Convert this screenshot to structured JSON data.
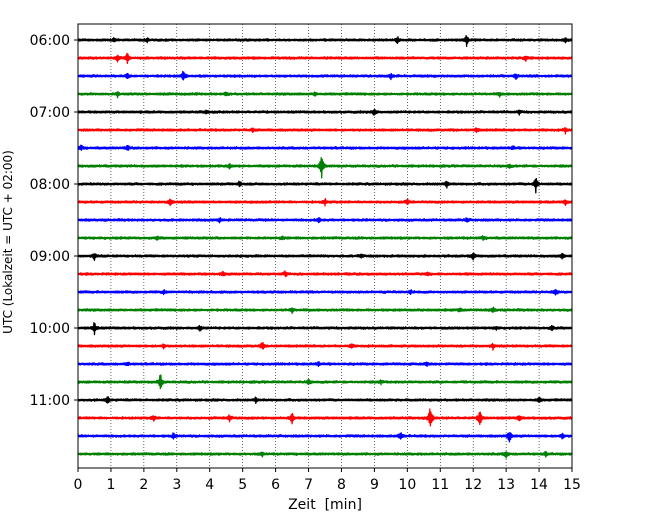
{
  "chart_data": {
    "type": "line",
    "title": "",
    "xlabel": "Zeit  [min]",
    "ylabel": "UTC (Lokalzeit = UTC + 02:00)",
    "xlim": [
      0,
      15
    ],
    "x_ticks": [
      0,
      1,
      2,
      3,
      4,
      5,
      6,
      7,
      8,
      9,
      10,
      11,
      12,
      13,
      14,
      15
    ],
    "y_tick_labels": [
      "06:00",
      "07:00",
      "08:00",
      "09:00",
      "10:00",
      "11:00"
    ],
    "row_interval_min": 15,
    "grid": "vertical dotted",
    "colors": [
      "#000000",
      "#ff0000",
      "#0000ff",
      "#008000"
    ],
    "rows": [
      {
        "start": "06:00",
        "color": "#000000",
        "events": [
          [
            1.1,
            2
          ],
          [
            2.1,
            2
          ],
          [
            9.7,
            4
          ],
          [
            11.8,
            6
          ],
          [
            14.8,
            3
          ]
        ]
      },
      {
        "start": "06:15",
        "color": "#ff0000",
        "events": [
          [
            1.2,
            4
          ],
          [
            1.5,
            6
          ],
          [
            13.6,
            3
          ]
        ]
      },
      {
        "start": "06:30",
        "color": "#0000ff",
        "events": [
          [
            1.5,
            3
          ],
          [
            3.2,
            6
          ],
          [
            9.5,
            3
          ],
          [
            13.3,
            3
          ]
        ]
      },
      {
        "start": "06:45",
        "color": "#008000",
        "events": [
          [
            1.2,
            3
          ],
          [
            4.5,
            2
          ],
          [
            7.2,
            2
          ],
          [
            12.8,
            2
          ]
        ]
      },
      {
        "start": "07:00",
        "color": "#000000",
        "events": [
          [
            3.9,
            2
          ],
          [
            9.0,
            5
          ],
          [
            13.4,
            2
          ]
        ]
      },
      {
        "start": "07:15",
        "color": "#ff0000",
        "events": [
          [
            5.3,
            2
          ],
          [
            12.1,
            2
          ],
          [
            14.8,
            3
          ]
        ]
      },
      {
        "start": "07:30",
        "color": "#0000ff",
        "events": [
          [
            0.1,
            3
          ],
          [
            1.5,
            3
          ],
          [
            13.2,
            2
          ]
        ]
      },
      {
        "start": "07:45",
        "color": "#008000",
        "events": [
          [
            7.4,
            14
          ],
          [
            4.6,
            3
          ],
          [
            13.1,
            2
          ]
        ]
      },
      {
        "start": "08:00",
        "color": "#000000",
        "events": [
          [
            4.9,
            3
          ],
          [
            11.2,
            4
          ],
          [
            13.9,
            9
          ]
        ]
      },
      {
        "start": "08:15",
        "color": "#ff0000",
        "events": [
          [
            2.8,
            5
          ],
          [
            7.5,
            4
          ],
          [
            10.0,
            3
          ],
          [
            14.8,
            3
          ]
        ]
      },
      {
        "start": "08:30",
        "color": "#0000ff",
        "events": [
          [
            4.3,
            2
          ],
          [
            7.3,
            3
          ],
          [
            11.8,
            2
          ]
        ]
      },
      {
        "start": "08:45",
        "color": "#008000",
        "events": [
          [
            2.4,
            2
          ],
          [
            6.2,
            2
          ],
          [
            12.3,
            2
          ]
        ]
      },
      {
        "start": "09:00",
        "color": "#000000",
        "events": [
          [
            0.5,
            4
          ],
          [
            8.6,
            2
          ],
          [
            12.0,
            5
          ],
          [
            14.7,
            3
          ]
        ]
      },
      {
        "start": "09:15",
        "color": "#ff0000",
        "events": [
          [
            4.4,
            2
          ],
          [
            6.3,
            3
          ],
          [
            10.6,
            2
          ]
        ]
      },
      {
        "start": "09:30",
        "color": "#0000ff",
        "events": [
          [
            2.6,
            2
          ],
          [
            10.1,
            2
          ],
          [
            14.5,
            4
          ]
        ]
      },
      {
        "start": "09:45",
        "color": "#008000",
        "events": [
          [
            6.5,
            3
          ],
          [
            11.6,
            2
          ],
          [
            12.6,
            3
          ]
        ]
      },
      {
        "start": "10:00",
        "color": "#000000",
        "events": [
          [
            0.5,
            7
          ],
          [
            3.7,
            3
          ],
          [
            12.7,
            2
          ],
          [
            14.4,
            3
          ]
        ]
      },
      {
        "start": "10:15",
        "color": "#ff0000",
        "events": [
          [
            2.6,
            2
          ],
          [
            5.6,
            4
          ],
          [
            8.3,
            2
          ],
          [
            12.6,
            3
          ]
        ]
      },
      {
        "start": "10:30",
        "color": "#0000ff",
        "events": [
          [
            1.5,
            2
          ],
          [
            7.3,
            2
          ],
          [
            10.6,
            2
          ]
        ]
      },
      {
        "start": "10:45",
        "color": "#008000",
        "events": [
          [
            2.5,
            10
          ],
          [
            7.0,
            3
          ],
          [
            9.2,
            2
          ]
        ]
      },
      {
        "start": "11:00",
        "color": "#000000",
        "events": [
          [
            0.9,
            4
          ],
          [
            5.4,
            3
          ],
          [
            14.0,
            3
          ]
        ]
      },
      {
        "start": "11:15",
        "color": "#ff0000",
        "events": [
          [
            2.3,
            3
          ],
          [
            4.6,
            4
          ],
          [
            6.5,
            6
          ],
          [
            10.7,
            14
          ],
          [
            12.2,
            10
          ],
          [
            13.4,
            3
          ]
        ]
      },
      {
        "start": "11:30",
        "color": "#0000ff",
        "events": [
          [
            2.9,
            3
          ],
          [
            9.8,
            5
          ],
          [
            13.1,
            7
          ],
          [
            14.7,
            3
          ]
        ]
      },
      {
        "start": "11:45",
        "color": "#008000",
        "events": [
          [
            5.6,
            2
          ],
          [
            13.0,
            4
          ],
          [
            14.2,
            2
          ]
        ]
      }
    ]
  }
}
